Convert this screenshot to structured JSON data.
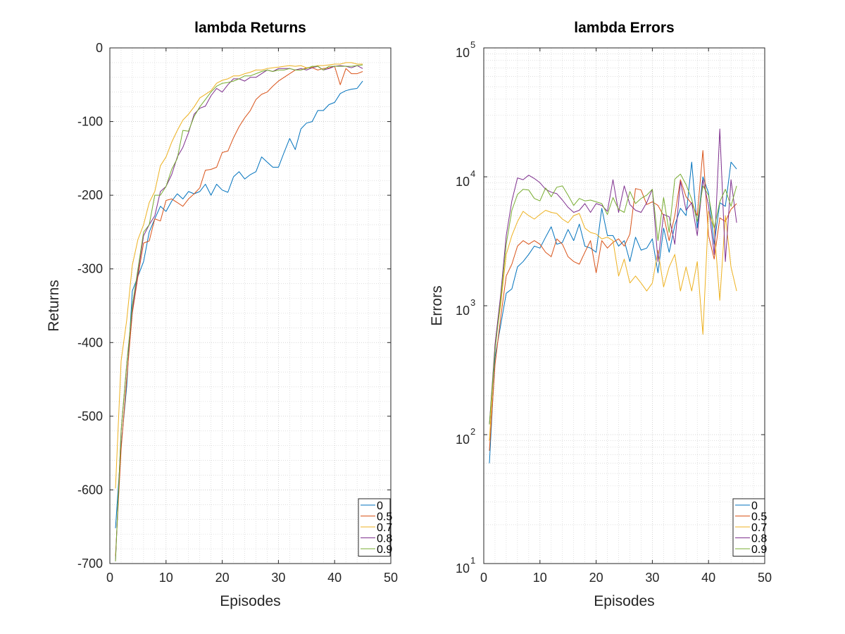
{
  "chart_data": [
    {
      "type": "line",
      "title": "lambda Returns",
      "xlabel": "Episodes",
      "ylabel": "Returns",
      "xlim": [
        0,
        50
      ],
      "ylim": [
        -700,
        0
      ],
      "yscale": "linear",
      "xticks": [
        0,
        10,
        20,
        30,
        40,
        50
      ],
      "yticks": [
        0,
        -100,
        -200,
        -300,
        -400,
        -500,
        -600,
        -700
      ],
      "xtick_labels": [
        "0",
        "10",
        "20",
        "30",
        "40",
        "50"
      ],
      "ytick_labels": [
        "0",
        "-100",
        "-200",
        "-300",
        "-400",
        "-500",
        "-600",
        "-700"
      ],
      "grid": true,
      "legend_position": "bottom-right",
      "x": [
        1,
        2,
        3,
        4,
        5,
        6,
        7,
        8,
        9,
        10,
        11,
        12,
        13,
        14,
        15,
        16,
        17,
        18,
        19,
        20,
        21,
        22,
        23,
        24,
        25,
        26,
        27,
        28,
        29,
        30,
        31,
        32,
        33,
        34,
        35,
        36,
        37,
        38,
        39,
        40,
        41,
        42,
        43,
        44,
        45
      ],
      "series": [
        {
          "name": "0",
          "color": "#0072BD",
          "values": [
            -652,
            -540,
            -460,
            -330,
            -310,
            -290,
            -250,
            -232,
            -215,
            -222,
            -208,
            -198,
            -205,
            -195,
            -198,
            -195,
            -185,
            -200,
            -185,
            -193,
            -196,
            -175,
            -168,
            -178,
            -172,
            -168,
            -148,
            -155,
            -162,
            -162,
            -142,
            -123,
            -138,
            -110,
            -102,
            -100,
            -85,
            -85,
            -77,
            -74,
            -62,
            -58,
            -56,
            -55,
            -45
          ]
        },
        {
          "name": "0.5",
          "color": "#D95319",
          "values": [
            -690,
            -545,
            -450,
            -360,
            -310,
            -265,
            -262,
            -232,
            -235,
            -207,
            -205,
            -210,
            -215,
            -205,
            -198,
            -190,
            -166,
            -165,
            -162,
            -142,
            -140,
            -122,
            -107,
            -95,
            -85,
            -70,
            -63,
            -60,
            -52,
            -45,
            -40,
            -35,
            -30,
            -30,
            -27,
            -27,
            -30,
            -28,
            -27,
            -25,
            -50,
            -28,
            -35,
            -35,
            -32
          ]
        },
        {
          "name": "0.7",
          "color": "#EDB120",
          "values": [
            -598,
            -425,
            -370,
            -295,
            -260,
            -240,
            -210,
            -195,
            -160,
            -148,
            -128,
            -112,
            -98,
            -90,
            -80,
            -68,
            -63,
            -58,
            -48,
            -44,
            -42,
            -38,
            -38,
            -35,
            -33,
            -30,
            -30,
            -28,
            -27,
            -26,
            -25,
            -24,
            -25,
            -24,
            -27,
            -26,
            -24,
            -24,
            -23,
            -22,
            -22,
            -20,
            -20,
            -22,
            -22
          ]
        },
        {
          "name": "0.8",
          "color": "#7E2F8E",
          "values": [
            -697,
            -520,
            -430,
            -355,
            -305,
            -255,
            -240,
            -228,
            -195,
            -188,
            -172,
            -148,
            -135,
            -115,
            -90,
            -82,
            -79,
            -65,
            -55,
            -60,
            -50,
            -42,
            -42,
            -45,
            -40,
            -40,
            -35,
            -30,
            -32,
            -28,
            -28,
            -28,
            -30,
            -28,
            -30,
            -27,
            -25,
            -30,
            -28,
            -25,
            -24,
            -25,
            -27,
            -24,
            -28
          ]
        },
        {
          "name": "0.9",
          "color": "#77AC30",
          "values": [
            -697,
            -520,
            -430,
            -350,
            -300,
            -250,
            -240,
            -200,
            -200,
            -188,
            -165,
            -150,
            -112,
            -113,
            -93,
            -80,
            -70,
            -60,
            -52,
            -48,
            -47,
            -45,
            -42,
            -38,
            -38,
            -35,
            -32,
            -30,
            -32,
            -30,
            -30,
            -28,
            -30,
            -30,
            -28,
            -25,
            -25,
            -30,
            -25,
            -25,
            -25,
            -25,
            -25,
            -24,
            -23
          ]
        }
      ]
    },
    {
      "type": "line",
      "title": "lambda Errors",
      "xlabel": "Episodes",
      "ylabel": "Errors",
      "xlim": [
        0,
        50
      ],
      "ylim": [
        10,
        100000
      ],
      "yscale": "log",
      "xticks": [
        0,
        10,
        20,
        30,
        40,
        50
      ],
      "yticks": [
        10,
        100,
        1000,
        10000,
        100000
      ],
      "xtick_labels": [
        "0",
        "10",
        "20",
        "30",
        "40",
        "50"
      ],
      "ytick_bases": [
        "10",
        "10",
        "10",
        "10",
        "10"
      ],
      "ytick_exponents": [
        "1",
        "2",
        "3",
        "4",
        "5"
      ],
      "grid": true,
      "legend_position": "bottom-right",
      "x": [
        1,
        2,
        3,
        4,
        5,
        6,
        7,
        8,
        9,
        10,
        11,
        12,
        13,
        14,
        15,
        16,
        17,
        18,
        19,
        20,
        21,
        22,
        23,
        24,
        25,
        26,
        27,
        28,
        29,
        30,
        31,
        32,
        33,
        34,
        35,
        36,
        37,
        38,
        39,
        40,
        41,
        42,
        43,
        44,
        45
      ],
      "series": [
        {
          "name": "0",
          "color": "#0072BD",
          "values": [
            60,
            400,
            700,
            1250,
            1350,
            2000,
            2200,
            2500,
            2900,
            2800,
            3400,
            4100,
            3000,
            3100,
            3900,
            3200,
            4300,
            2900,
            2800,
            2600,
            5700,
            3500,
            3500,
            2900,
            3200,
            2200,
            3400,
            2700,
            2800,
            3300,
            1800,
            4000,
            2600,
            4200,
            5700,
            5000,
            13000,
            4000,
            10000,
            7500,
            3000,
            6300,
            5900,
            13000,
            11500
          ]
        },
        {
          "name": "0.5",
          "color": "#D95319",
          "values": [
            75,
            350,
            800,
            1700,
            2100,
            2900,
            3200,
            3000,
            3200,
            3000,
            2600,
            2400,
            3300,
            3000,
            2400,
            2200,
            2100,
            2600,
            3200,
            1800,
            3200,
            2800,
            3100,
            3300,
            2900,
            3600,
            8100,
            7900,
            6100,
            6400,
            6000,
            5000,
            3200,
            5000,
            9500,
            7000,
            6200,
            5000,
            16000,
            3500,
            2300,
            4800,
            4500,
            5600,
            6200
          ]
        },
        {
          "name": "0.7",
          "color": "#EDB120",
          "values": [
            90,
            500,
            1000,
            2500,
            3500,
            4500,
            5400,
            5000,
            4700,
            5100,
            5500,
            5300,
            5200,
            4700,
            4400,
            5000,
            5200,
            4000,
            3700,
            3600,
            3300,
            3400,
            3200,
            1700,
            2300,
            1500,
            1700,
            1500,
            1300,
            1500,
            2700,
            1400,
            2000,
            2500,
            1300,
            2000,
            1300,
            2200,
            600,
            5400,
            4000,
            1100,
            5000,
            2000,
            1300
          ]
        },
        {
          "name": "0.8",
          "color": "#7E2F8E",
          "values": [
            120,
            500,
            1200,
            3500,
            6500,
            9800,
            9500,
            10300,
            9700,
            9000,
            8000,
            7600,
            7400,
            6600,
            5800,
            5300,
            5500,
            6200,
            5300,
            6200,
            6000,
            5400,
            9500,
            5300,
            8500,
            6100,
            5500,
            5300,
            6300,
            8000,
            2200,
            5100,
            4900,
            3000,
            9200,
            5500,
            6300,
            3500,
            9500,
            6000,
            2500,
            23500,
            2200,
            9500,
            4400
          ]
        },
        {
          "name": "0.9",
          "color": "#77AC30",
          "values": [
            120,
            450,
            1100,
            3000,
            5500,
            7300,
            8000,
            7900,
            6800,
            6500,
            8200,
            7000,
            8300,
            8500,
            7200,
            6000,
            6800,
            6500,
            6600,
            6400,
            6200,
            5100,
            6900,
            5600,
            5300,
            7700,
            6200,
            6800,
            7200,
            8000,
            3200,
            6900,
            3700,
            9600,
            10500,
            8700,
            6700,
            4500,
            8500,
            7200,
            4000,
            6400,
            8000,
            5900,
            8500
          ]
        }
      ]
    }
  ]
}
